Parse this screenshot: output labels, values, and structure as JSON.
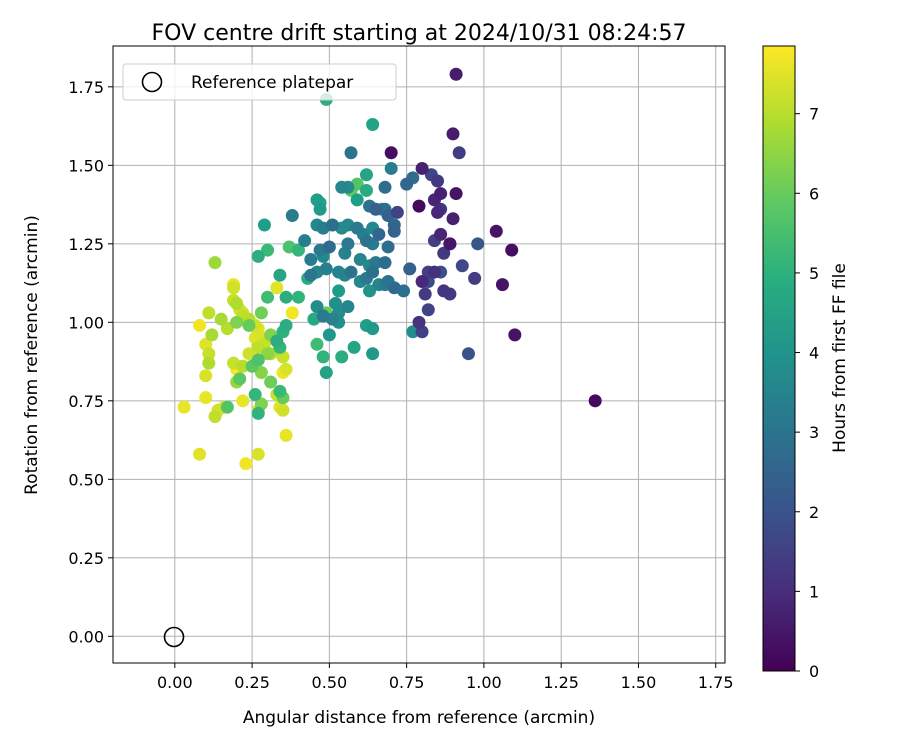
{
  "chart_data": {
    "type": "scatter",
    "title": "FOV centre drift starting at 2024/10/31 08:24:57",
    "xlabel": "Angular distance from reference (arcmin)",
    "ylabel": "Rotation from reference (arcmin)",
    "xlim": [
      -0.2,
      1.78
    ],
    "ylim": [
      -0.085,
      1.88
    ],
    "xticks": [
      0.0,
      0.25,
      0.5,
      0.75,
      1.0,
      1.25,
      1.5,
      1.75
    ],
    "xtick_labels": [
      "0.00",
      "0.25",
      "0.50",
      "0.75",
      "1.00",
      "1.25",
      "1.50",
      "1.75"
    ],
    "yticks": [
      0.0,
      0.25,
      0.5,
      0.75,
      1.0,
      1.25,
      1.5,
      1.75
    ],
    "ytick_labels": [
      "0.00",
      "0.25",
      "0.50",
      "0.75",
      "1.00",
      "1.25",
      "1.50",
      "1.75"
    ],
    "grid": true,
    "legend": {
      "location": "upper-left",
      "entries": [
        "Reference platepar"
      ]
    },
    "colorbar": {
      "label": "Hours from first FF file",
      "colormap": "viridis",
      "range": [
        0,
        7.85
      ],
      "ticks": [
        0,
        1,
        2,
        3,
        4,
        5,
        6,
        7
      ],
      "tick_labels": [
        "0",
        "1",
        "2",
        "3",
        "4",
        "5",
        "6",
        "7"
      ]
    },
    "reference": {
      "x": 0.0,
      "y": 0.0,
      "marker": "open-circle",
      "color": "#000000"
    },
    "point_fields": [
      "x",
      "y",
      "hours"
    ],
    "points": [
      [
        0.91,
        1.79,
        0.6
      ],
      [
        0.86,
        1.41,
        0.7
      ],
      [
        0.9,
        1.6,
        0.6
      ],
      [
        0.92,
        1.54,
        1.4
      ],
      [
        0.7,
        1.54,
        0.3
      ],
      [
        0.8,
        1.49,
        0.7
      ],
      [
        0.83,
        1.47,
        1.6
      ],
      [
        0.85,
        1.45,
        1.3
      ],
      [
        0.91,
        1.41,
        0.4
      ],
      [
        0.79,
        1.37,
        0.2
      ],
      [
        0.84,
        1.39,
        0.8
      ],
      [
        0.86,
        1.36,
        1.2
      ],
      [
        0.85,
        1.35,
        0.9
      ],
      [
        0.9,
        1.33,
        0.7
      ],
      [
        0.72,
        1.35,
        1.6
      ],
      [
        0.71,
        1.29,
        2.4
      ],
      [
        0.84,
        1.26,
        1.5
      ],
      [
        0.86,
        1.28,
        0.8
      ],
      [
        0.89,
        1.25,
        1.1
      ],
      [
        0.87,
        1.22,
        1.3
      ],
      [
        0.89,
        1.25,
        0.5
      ],
      [
        0.98,
        1.25,
        2.1
      ],
      [
        1.04,
        1.29,
        0.4
      ],
      [
        1.09,
        1.23,
        0.3
      ],
      [
        0.76,
        1.17,
        2.4
      ],
      [
        0.82,
        1.16,
        1.5
      ],
      [
        0.82,
        1.13,
        1.8
      ],
      [
        0.84,
        1.16,
        1.1
      ],
      [
        0.86,
        1.16,
        1.9
      ],
      [
        0.8,
        1.13,
        0.9
      ],
      [
        0.81,
        1.09,
        1.4
      ],
      [
        0.87,
        1.1,
        1.2
      ],
      [
        0.89,
        1.09,
        1.3
      ],
      [
        0.93,
        1.18,
        1.7
      ],
      [
        0.97,
        1.14,
        1.4
      ],
      [
        1.06,
        1.12,
        0.4
      ],
      [
        0.82,
        1.04,
        1.6
      ],
      [
        0.79,
        1.0,
        1.2
      ],
      [
        0.8,
        0.97,
        1.5
      ],
      [
        0.77,
        0.97,
        3.9
      ],
      [
        0.95,
        0.9,
        2.0
      ],
      [
        1.1,
        0.96,
        0.4
      ],
      [
        1.36,
        0.75,
        0.2
      ],
      [
        0.49,
        1.71,
        4.9
      ],
      [
        0.64,
        1.63,
        4.5
      ],
      [
        0.59,
        1.44,
        5.7
      ],
      [
        0.57,
        1.42,
        5.9
      ],
      [
        0.57,
        1.54,
        3.0
      ],
      [
        0.62,
        1.47,
        4.6
      ],
      [
        0.62,
        1.42,
        4.8
      ],
      [
        0.59,
        1.39,
        4.4
      ],
      [
        0.56,
        1.43,
        3.8
      ],
      [
        0.54,
        1.43,
        3.6
      ],
      [
        0.63,
        1.37,
        3.0
      ],
      [
        0.65,
        1.36,
        2.4
      ],
      [
        0.67,
        1.36,
        4.3
      ],
      [
        0.68,
        1.36,
        2.9
      ],
      [
        0.69,
        1.34,
        2.5
      ],
      [
        0.68,
        1.43,
        2.8
      ],
      [
        0.7,
        1.49,
        3.4
      ],
      [
        0.75,
        1.44,
        2.6
      ],
      [
        0.77,
        1.46,
        2.8
      ],
      [
        0.46,
        1.39,
        4.4
      ],
      [
        0.47,
        1.38,
        4.5
      ],
      [
        0.47,
        1.36,
        4.2
      ],
      [
        0.38,
        1.34,
        3.3
      ],
      [
        0.29,
        1.31,
        4.4
      ],
      [
        0.46,
        1.31,
        3.6
      ],
      [
        0.48,
        1.3,
        3.4
      ],
      [
        0.51,
        1.31,
        2.9
      ],
      [
        0.54,
        1.3,
        3.8
      ],
      [
        0.56,
        1.31,
        3.7
      ],
      [
        0.59,
        1.3,
        3.2
      ],
      [
        0.61,
        1.28,
        3.5
      ],
      [
        0.64,
        1.3,
        3.7
      ],
      [
        0.66,
        1.28,
        2.6
      ],
      [
        0.71,
        1.31,
        2.6
      ],
      [
        0.42,
        1.26,
        3.4
      ],
      [
        0.37,
        1.24,
        5.6
      ],
      [
        0.4,
        1.23,
        5.2
      ],
      [
        0.47,
        1.23,
        3.2
      ],
      [
        0.5,
        1.24,
        2.7
      ],
      [
        0.56,
        1.25,
        3.2
      ],
      [
        0.62,
        1.26,
        3.0
      ],
      [
        0.64,
        1.25,
        3.3
      ],
      [
        0.69,
        1.24,
        2.8
      ],
      [
        0.44,
        1.2,
        3.3
      ],
      [
        0.48,
        1.21,
        3.7
      ],
      [
        0.55,
        1.22,
        3.5
      ],
      [
        0.6,
        1.2,
        3.6
      ],
      [
        0.63,
        1.18,
        3.7
      ],
      [
        0.65,
        1.19,
        3.2
      ],
      [
        0.68,
        1.19,
        2.8
      ],
      [
        0.44,
        1.15,
        3.1
      ],
      [
        0.46,
        1.16,
        3.6
      ],
      [
        0.49,
        1.17,
        3.4
      ],
      [
        0.53,
        1.16,
        3.5
      ],
      [
        0.55,
        1.15,
        3.6
      ],
      [
        0.57,
        1.16,
        3.0
      ],
      [
        0.6,
        1.13,
        3.7
      ],
      [
        0.62,
        1.14,
        3.2
      ],
      [
        0.64,
        1.16,
        2.9
      ],
      [
        0.66,
        1.12,
        3.6
      ],
      [
        0.69,
        1.13,
        3.0
      ],
      [
        0.71,
        1.11,
        2.7
      ],
      [
        0.74,
        1.1,
        2.9
      ],
      [
        0.53,
        1.1,
        4.3
      ],
      [
        0.63,
        1.1,
        4.0
      ],
      [
        0.68,
        1.12,
        3.3
      ],
      [
        0.46,
        1.05,
        3.8
      ],
      [
        0.52,
        1.06,
        3.9
      ],
      [
        0.53,
        1.03,
        3.8
      ],
      [
        0.56,
        1.05,
        3.6
      ],
      [
        0.48,
        1.02,
        3.2
      ],
      [
        0.51,
        1.01,
        3.5
      ],
      [
        0.53,
        1.0,
        3.9
      ],
      [
        0.62,
        0.99,
        4.4
      ],
      [
        0.64,
        0.98,
        4.2
      ],
      [
        0.5,
        0.96,
        4.2
      ],
      [
        0.58,
        0.92,
        4.6
      ],
      [
        0.54,
        0.89,
        4.8
      ],
      [
        0.64,
        0.9,
        4.2
      ],
      [
        0.48,
        0.89,
        5.1
      ],
      [
        0.46,
        0.93,
        5.4
      ],
      [
        0.49,
        0.84,
        4.5
      ],
      [
        0.35,
        0.97,
        5.0
      ],
      [
        0.36,
        0.99,
        4.9
      ],
      [
        0.45,
        1.01,
        4.7
      ],
      [
        0.49,
        1.03,
        6.0
      ],
      [
        0.3,
        1.08,
        5.4
      ],
      [
        0.36,
        1.08,
        4.9
      ],
      [
        0.4,
        1.08,
        5.1
      ],
      [
        0.43,
        1.14,
        4.8
      ],
      [
        0.34,
        1.15,
        4.6
      ],
      [
        0.3,
        1.23,
        5.3
      ],
      [
        0.27,
        1.21,
        4.9
      ],
      [
        0.2,
        1.0,
        6.3
      ],
      [
        0.28,
        1.03,
        6.1
      ],
      [
        0.24,
        0.99,
        6.0
      ],
      [
        0.31,
        0.96,
        6.3
      ],
      [
        0.33,
        0.94,
        4.9
      ],
      [
        0.34,
        0.92,
        5.2
      ],
      [
        0.3,
        0.9,
        6.5
      ],
      [
        0.27,
        0.88,
        5.6
      ],
      [
        0.25,
        0.86,
        5.8
      ],
      [
        0.28,
        0.84,
        6.4
      ],
      [
        0.21,
        0.82,
        5.8
      ],
      [
        0.2,
        0.81,
        6.6
      ],
      [
        0.31,
        0.81,
        6.1
      ],
      [
        0.34,
        0.78,
        5.3
      ],
      [
        0.35,
        0.76,
        6.0
      ],
      [
        0.17,
        0.73,
        5.7
      ],
      [
        0.26,
        0.77,
        5.2
      ],
      [
        0.28,
        0.74,
        6.3
      ],
      [
        0.27,
        0.71,
        5.1
      ],
      [
        0.13,
        1.19,
        6.7
      ],
      [
        0.11,
        1.03,
        7.1
      ],
      [
        0.12,
        0.96,
        6.8
      ],
      [
        0.11,
        0.9,
        7.2
      ],
      [
        0.11,
        0.87,
        6.9
      ],
      [
        0.15,
        1.01,
        6.8
      ],
      [
        0.17,
        0.98,
        7.0
      ],
      [
        0.19,
        1.07,
        7.2
      ],
      [
        0.2,
        1.06,
        6.9
      ],
      [
        0.21,
        1.04,
        7.3
      ],
      [
        0.22,
        1.03,
        7.4
      ],
      [
        0.19,
        1.11,
        7.3
      ],
      [
        0.19,
        1.12,
        7.6
      ],
      [
        0.22,
        1.02,
        7.1
      ],
      [
        0.24,
        1.01,
        7.0
      ],
      [
        0.26,
        0.99,
        7.3
      ],
      [
        0.27,
        0.98,
        7.5
      ],
      [
        0.28,
        0.95,
        7.4
      ],
      [
        0.29,
        0.93,
        7.2
      ],
      [
        0.27,
        0.92,
        7.1
      ],
      [
        0.31,
        0.9,
        6.9
      ],
      [
        0.35,
        0.89,
        7.2
      ],
      [
        0.36,
        0.85,
        7.4
      ],
      [
        0.35,
        0.84,
        7.7
      ],
      [
        0.08,
        0.99,
        7.7
      ],
      [
        0.1,
        0.93,
        7.5
      ],
      [
        0.1,
        0.83,
        7.4
      ],
      [
        0.19,
        0.87,
        7.2
      ],
      [
        0.2,
        0.85,
        7.8
      ],
      [
        0.22,
        0.86,
        7.0
      ],
      [
        0.24,
        0.9,
        7.3
      ],
      [
        0.26,
        0.95,
        7.5
      ],
      [
        0.03,
        0.73,
        7.6
      ],
      [
        0.1,
        0.76,
        7.6
      ],
      [
        0.13,
        0.7,
        7.1
      ],
      [
        0.14,
        0.72,
        7.3
      ],
      [
        0.16,
        0.73,
        7.5
      ],
      [
        0.22,
        0.75,
        7.6
      ],
      [
        0.27,
        0.72,
        7.4
      ],
      [
        0.33,
        0.77,
        7.2
      ],
      [
        0.34,
        0.73,
        7.5
      ],
      [
        0.35,
        0.72,
        7.3
      ],
      [
        0.36,
        0.64,
        7.6
      ],
      [
        0.08,
        0.58,
        7.5
      ],
      [
        0.23,
        0.55,
        7.7
      ],
      [
        0.27,
        0.58,
        7.4
      ],
      [
        0.33,
        1.11,
        7.5
      ],
      [
        0.38,
        1.03,
        7.7
      ]
    ]
  }
}
